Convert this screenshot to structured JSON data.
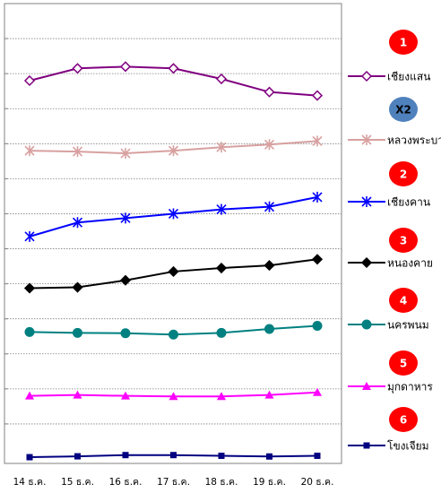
{
  "chart_data": {
    "type": "line",
    "categories": [
      "14 ธ.ค.",
      "15 ธ.ค.",
      "16 ธ.ค.",
      "17 ธ.ค.",
      "18 ธ.ค.",
      "19 ธ.ค.",
      "20 ธ.ค."
    ],
    "ylim": [
      0,
      26
    ],
    "grid": true,
    "legend_placement": "right",
    "series": [
      {
        "name": "เชียงแสน",
        "badge": "1",
        "badge_color": "#ff0000",
        "color": "#800080",
        "marker": "diamond-open",
        "values": [
          21.6,
          22.3,
          22.4,
          22.3,
          21.7,
          20.95,
          20.75
        ]
      },
      {
        "name": "หลวงพระบาง",
        "badge": "X2",
        "badge_color": "#4f81bd",
        "color": "#d8a0a0",
        "marker": "star",
        "values": [
          17.6,
          17.55,
          17.45,
          17.6,
          17.8,
          17.95,
          18.15
        ]
      },
      {
        "name": "เชียงคาน",
        "badge": "2",
        "badge_color": "#ff0000",
        "color": "#0000ff",
        "marker": "star",
        "values": [
          12.7,
          13.5,
          13.75,
          14.0,
          14.25,
          14.4,
          14.95
        ]
      },
      {
        "name": "หนองคาย",
        "badge": "3",
        "badge_color": "#ff0000",
        "color": "#000000",
        "marker": "diamond",
        "values": [
          9.75,
          9.8,
          10.2,
          10.7,
          10.9,
          11.05,
          11.4
        ]
      },
      {
        "name": "นครพนม",
        "badge": "4",
        "badge_color": "#ff0000",
        "color": "#008080",
        "marker": "circle",
        "values": [
          7.25,
          7.2,
          7.18,
          7.1,
          7.2,
          7.42,
          7.6
        ]
      },
      {
        "name": "มุกดาหาร",
        "badge": "5",
        "badge_color": "#ff0000",
        "color": "#ff00ff",
        "marker": "triangle",
        "values": [
          3.6,
          3.65,
          3.6,
          3.57,
          3.57,
          3.65,
          3.8
        ]
      },
      {
        "name": "โขงเจียม",
        "badge": "6",
        "badge_color": "#ff0000",
        "color": "#000080",
        "marker": "square",
        "values": [
          0.1,
          0.15,
          0.22,
          0.22,
          0.18,
          0.14,
          0.18
        ]
      }
    ]
  }
}
